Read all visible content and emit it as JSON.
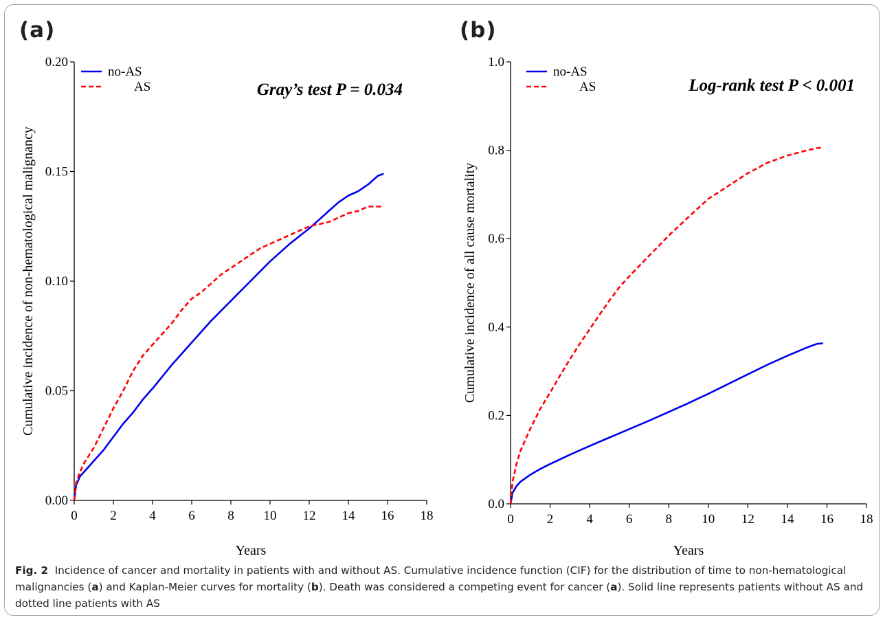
{
  "panels": {
    "a_letter": "(a)",
    "b_letter": "(b)"
  },
  "caption": {
    "label": "Fig. 2",
    "text_parts": [
      "Incidence of cancer and mortality in patients with and without AS. Cumulative incidence function (CIF) for the distribution of time to non-hematological malignancies (",
      "a",
      ") and Kaplan-Meier curves for mortality (",
      "b",
      "). Death was considered a competing event for cancer (",
      "a",
      "). Solid line represents patients without AS and dotted line patients with AS"
    ]
  },
  "colors": {
    "no_as": "#0000ee",
    "as": "#ff0000",
    "axis": "#000000"
  },
  "chart_data": [
    {
      "type": "line",
      "title": "",
      "annotation": "Gray’s test P = 0.034",
      "xlabel": "Years",
      "ylabel": "Cumulative incidence of non-hematological malignancy",
      "xlim": [
        0,
        18
      ],
      "ylim": [
        0,
        0.2
      ],
      "xticks": [
        "0",
        "2",
        "4",
        "6",
        "8",
        "10",
        "12",
        "14",
        "16",
        "18"
      ],
      "yticks": [
        "0.00",
        "0.05",
        "0.10",
        "0.15",
        "0.20"
      ],
      "legend_position": "top-left",
      "grid": false,
      "series": [
        {
          "name": "no-AS",
          "style": "solid",
          "x": [
            0,
            0.1,
            0.3,
            0.5,
            1,
            1.5,
            2,
            2.5,
            3,
            3.5,
            4,
            5,
            6,
            7,
            8,
            9,
            10,
            11,
            12,
            12.5,
            13,
            13.5,
            14,
            14.5,
            15,
            15.5,
            15.8
          ],
          "y": [
            0,
            0.007,
            0.011,
            0.013,
            0.018,
            0.023,
            0.029,
            0.035,
            0.04,
            0.046,
            0.051,
            0.062,
            0.072,
            0.082,
            0.091,
            0.1,
            0.109,
            0.117,
            0.124,
            0.128,
            0.132,
            0.136,
            0.139,
            0.141,
            0.144,
            0.148,
            0.149
          ]
        },
        {
          "name": "AS",
          "style": "dashed",
          "x": [
            0,
            0.1,
            0.3,
            0.5,
            1,
            1.5,
            2,
            2.5,
            3,
            3.5,
            4,
            4.5,
            5,
            5.5,
            6,
            6.5,
            7,
            7.5,
            8,
            8.5,
            9,
            9.5,
            10,
            10.5,
            11,
            11.5,
            12,
            12.5,
            13,
            13.5,
            14,
            14.5,
            15,
            15.5,
            15.8
          ],
          "y": [
            0,
            0.008,
            0.013,
            0.017,
            0.024,
            0.033,
            0.042,
            0.05,
            0.059,
            0.066,
            0.071,
            0.076,
            0.081,
            0.087,
            0.092,
            0.095,
            0.099,
            0.103,
            0.106,
            0.109,
            0.112,
            0.115,
            0.117,
            0.119,
            0.121,
            0.123,
            0.125,
            0.126,
            0.127,
            0.129,
            0.131,
            0.132,
            0.134,
            0.134,
            0.134
          ]
        }
      ]
    },
    {
      "type": "line",
      "title": "",
      "annotation": "Log-rank test P < 0.001",
      "xlabel": "Years",
      "ylabel": "Cumulative incidence of all cause mortality",
      "xlim": [
        0,
        18
      ],
      "ylim": [
        0,
        1.0
      ],
      "xticks": [
        "0",
        "2",
        "4",
        "6",
        "8",
        "10",
        "12",
        "14",
        "16",
        "18"
      ],
      "yticks": [
        "0.0",
        "0.2",
        "0.4",
        "0.6",
        "0.8",
        "1.0"
      ],
      "legend_position": "top-left",
      "grid": false,
      "series": [
        {
          "name": "no-AS",
          "style": "solid",
          "x": [
            0,
            0.1,
            0.3,
            0.5,
            1,
            1.5,
            2,
            3,
            4,
            5,
            6,
            7,
            8,
            9,
            10,
            11,
            12,
            13,
            14,
            15,
            15.5,
            15.8
          ],
          "y": [
            0,
            0.025,
            0.04,
            0.05,
            0.066,
            0.079,
            0.09,
            0.111,
            0.131,
            0.15,
            0.169,
            0.188,
            0.208,
            0.228,
            0.249,
            0.271,
            0.293,
            0.315,
            0.335,
            0.354,
            0.362,
            0.363
          ]
        },
        {
          "name": "AS",
          "style": "dashed",
          "x": [
            0,
            0.1,
            0.3,
            0.5,
            1,
            1.5,
            2,
            2.5,
            3,
            3.5,
            4,
            4.5,
            5,
            5.5,
            6,
            7,
            8,
            9,
            10,
            11,
            12,
            13,
            14,
            15,
            15.5,
            15.8
          ],
          "y": [
            0,
            0.05,
            0.09,
            0.12,
            0.17,
            0.215,
            0.252,
            0.29,
            0.327,
            0.362,
            0.395,
            0.428,
            0.46,
            0.49,
            0.515,
            0.561,
            0.607,
            0.649,
            0.69,
            0.719,
            0.748,
            0.772,
            0.788,
            0.8,
            0.805,
            0.806
          ]
        }
      ]
    }
  ]
}
